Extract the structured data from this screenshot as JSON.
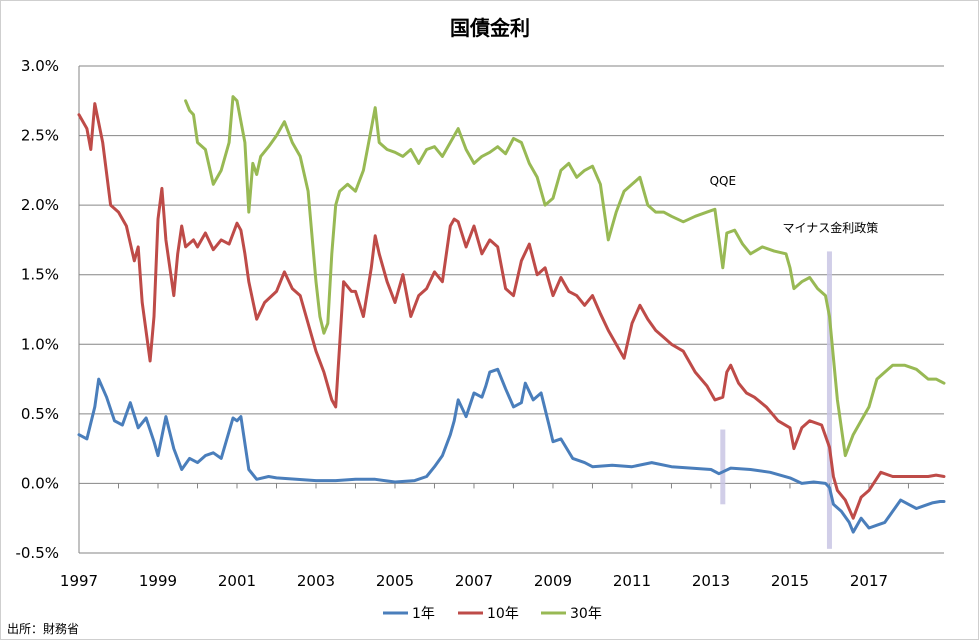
{
  "chart_data": {
    "type": "line",
    "title": "国債金利",
    "xlabel": "",
    "ylabel": "",
    "ylim": [
      -0.5,
      3.0
    ],
    "xlim": [
      1997.0,
      2018.9
    ],
    "yticks": [
      3.0,
      2.5,
      2.0,
      1.5,
      1.0,
      0.5,
      0.0,
      -0.5
    ],
    "ytick_labels": [
      "3.0%",
      "2.5%",
      "2.0%",
      "1.5%",
      "1.0%",
      "0.5%",
      "0.0%",
      "-0.5%"
    ],
    "xtick_labels": [
      "1997",
      "1999",
      "2001",
      "2003",
      "2005",
      "2007",
      "2009",
      "2011",
      "2013",
      "2015",
      "2017"
    ],
    "grid": true,
    "legend_position": "bottom",
    "colors": {
      "1年": "#4a7ebb",
      "10年": "#be4b48",
      "30年": "#98b954",
      "band": "#c9c6e4"
    },
    "series": [
      {
        "name": "1年",
        "color": "#4a7ebb",
        "x": [
          1997.0,
          1997.2,
          1997.4,
          1997.5,
          1997.7,
          1997.9,
          1998.1,
          1998.3,
          1998.5,
          1998.7,
          1998.9,
          1999.0,
          1999.2,
          1999.4,
          1999.6,
          1999.8,
          2000.0,
          2000.2,
          2000.4,
          2000.6,
          2000.9,
          2001.0,
          2001.1,
          2001.3,
          2001.5,
          2001.8,
          2002.0,
          2002.5,
          2003.0,
          2003.5,
          2004.0,
          2004.5,
          2005.0,
          2005.5,
          2005.8,
          2006.0,
          2006.2,
          2006.4,
          2006.5,
          2006.6,
          2006.8,
          2007.0,
          2007.2,
          2007.3,
          2007.4,
          2007.6,
          2007.8,
          2008.0,
          2008.2,
          2008.3,
          2008.5,
          2008.7,
          2008.9,
          2009.0,
          2009.2,
          2009.5,
          2009.8,
          2010.0,
          2010.5,
          2011.0,
          2011.5,
          2012.0,
          2012.5,
          2013.0,
          2013.2,
          2013.5,
          2014.0,
          2014.5,
          2015.0,
          2015.3,
          2015.6,
          2015.9,
          2016.0,
          2016.1,
          2016.3,
          2016.5,
          2016.6,
          2016.8,
          2017.0,
          2017.2,
          2017.4,
          2017.6,
          2017.8,
          2018.0,
          2018.2,
          2018.4,
          2018.6,
          2018.8,
          2018.9
        ],
        "values": [
          0.35,
          0.32,
          0.55,
          0.75,
          0.62,
          0.45,
          0.42,
          0.58,
          0.4,
          0.47,
          0.3,
          0.2,
          0.48,
          0.25,
          0.1,
          0.18,
          0.15,
          0.2,
          0.22,
          0.18,
          0.47,
          0.45,
          0.48,
          0.1,
          0.03,
          0.05,
          0.04,
          0.03,
          0.02,
          0.02,
          0.03,
          0.03,
          0.01,
          0.02,
          0.05,
          0.12,
          0.2,
          0.35,
          0.45,
          0.6,
          0.48,
          0.65,
          0.62,
          0.7,
          0.8,
          0.82,
          0.68,
          0.55,
          0.58,
          0.72,
          0.6,
          0.65,
          0.42,
          0.3,
          0.32,
          0.18,
          0.15,
          0.12,
          0.13,
          0.12,
          0.15,
          0.12,
          0.11,
          0.1,
          0.07,
          0.11,
          0.1,
          0.08,
          0.04,
          0.0,
          0.01,
          0.0,
          -0.03,
          -0.15,
          -0.2,
          -0.28,
          -0.35,
          -0.25,
          -0.32,
          -0.3,
          -0.28,
          -0.2,
          -0.12,
          -0.15,
          -0.18,
          -0.16,
          -0.14,
          -0.13,
          -0.13
        ]
      },
      {
        "name": "10年",
        "color": "#be4b48",
        "x": [
          1997.0,
          1997.2,
          1997.3,
          1997.4,
          1997.6,
          1997.8,
          1998.0,
          1998.2,
          1998.4,
          1998.5,
          1998.6,
          1998.8,
          1998.9,
          1999.0,
          1999.1,
          1999.2,
          1999.4,
          1999.5,
          1999.6,
          1999.7,
          1999.9,
          2000.0,
          2000.2,
          2000.4,
          2000.6,
          2000.8,
          2001.0,
          2001.1,
          2001.2,
          2001.3,
          2001.5,
          2001.7,
          2002.0,
          2002.2,
          2002.4,
          2002.6,
          2002.8,
          2003.0,
          2003.2,
          2003.4,
          2003.5,
          2003.6,
          2003.7,
          2003.9,
          2004.0,
          2004.2,
          2004.4,
          2004.5,
          2004.6,
          2004.8,
          2005.0,
          2005.2,
          2005.4,
          2005.6,
          2005.8,
          2006.0,
          2006.2,
          2006.4,
          2006.5,
          2006.6,
          2006.8,
          2007.0,
          2007.2,
          2007.4,
          2007.6,
          2007.8,
          2008.0,
          2008.2,
          2008.4,
          2008.6,
          2008.8,
          2009.0,
          2009.2,
          2009.4,
          2009.6,
          2009.8,
          2010.0,
          2010.2,
          2010.4,
          2010.6,
          2010.8,
          2011.0,
          2011.2,
          2011.4,
          2011.6,
          2011.8,
          2012.0,
          2012.3,
          2012.6,
          2012.9,
          2013.1,
          2013.3,
          2013.4,
          2013.5,
          2013.7,
          2013.9,
          2014.1,
          2014.4,
          2014.7,
          2015.0,
          2015.1,
          2015.3,
          2015.5,
          2015.8,
          2016.0,
          2016.1,
          2016.2,
          2016.4,
          2016.6,
          2016.8,
          2017.0,
          2017.3,
          2017.6,
          2017.9,
          2018.2,
          2018.5,
          2018.7,
          2018.9
        ],
        "values": [
          2.65,
          2.55,
          2.4,
          2.73,
          2.45,
          2.0,
          1.95,
          1.85,
          1.6,
          1.7,
          1.3,
          0.88,
          1.2,
          1.9,
          2.12,
          1.75,
          1.35,
          1.65,
          1.85,
          1.7,
          1.75,
          1.7,
          1.8,
          1.68,
          1.75,
          1.72,
          1.87,
          1.82,
          1.65,
          1.45,
          1.18,
          1.3,
          1.38,
          1.52,
          1.4,
          1.35,
          1.15,
          0.95,
          0.8,
          0.6,
          0.55,
          1.0,
          1.45,
          1.38,
          1.38,
          1.2,
          1.55,
          1.78,
          1.65,
          1.45,
          1.3,
          1.5,
          1.2,
          1.35,
          1.4,
          1.52,
          1.45,
          1.85,
          1.9,
          1.88,
          1.7,
          1.85,
          1.65,
          1.75,
          1.7,
          1.4,
          1.35,
          1.6,
          1.72,
          1.5,
          1.55,
          1.35,
          1.48,
          1.38,
          1.35,
          1.28,
          1.35,
          1.22,
          1.1,
          1.0,
          0.9,
          1.15,
          1.28,
          1.18,
          1.1,
          1.05,
          1.0,
          0.95,
          0.8,
          0.7,
          0.6,
          0.62,
          0.8,
          0.85,
          0.72,
          0.65,
          0.62,
          0.55,
          0.45,
          0.4,
          0.25,
          0.4,
          0.45,
          0.42,
          0.26,
          0.05,
          -0.05,
          -0.12,
          -0.25,
          -0.1,
          -0.05,
          0.08,
          0.05,
          0.05,
          0.05,
          0.05,
          0.06,
          0.05
        ]
      },
      {
        "name": "30年",
        "color": "#98b954",
        "x": [
          1999.7,
          1999.8,
          1999.9,
          2000.0,
          2000.2,
          2000.4,
          2000.6,
          2000.8,
          2000.9,
          2001.0,
          2001.2,
          2001.3,
          2001.4,
          2001.5,
          2001.6,
          2001.8,
          2002.0,
          2002.2,
          2002.4,
          2002.6,
          2002.8,
          2003.0,
          2003.1,
          2003.2,
          2003.3,
          2003.4,
          2003.5,
          2003.6,
          2003.8,
          2004.0,
          2004.2,
          2004.4,
          2004.5,
          2004.6,
          2004.8,
          2005.0,
          2005.2,
          2005.4,
          2005.6,
          2005.8,
          2006.0,
          2006.2,
          2006.4,
          2006.6,
          2006.8,
          2007.0,
          2007.2,
          2007.4,
          2007.6,
          2007.8,
          2008.0,
          2008.2,
          2008.4,
          2008.6,
          2008.8,
          2009.0,
          2009.2,
          2009.4,
          2009.6,
          2009.8,
          2010.0,
          2010.2,
          2010.4,
          2010.6,
          2010.8,
          2011.0,
          2011.2,
          2011.4,
          2011.6,
          2011.8,
          2012.0,
          2012.3,
          2012.6,
          2012.9,
          2013.1,
          2013.3,
          2013.4,
          2013.6,
          2013.8,
          2014.0,
          2014.3,
          2014.6,
          2014.9,
          2015.0,
          2015.1,
          2015.3,
          2015.5,
          2015.7,
          2015.9,
          2016.0,
          2016.2,
          2016.4,
          2016.6,
          2016.8,
          2017.0,
          2017.2,
          2017.4,
          2017.6,
          2017.9,
          2018.2,
          2018.5,
          2018.7,
          2018.9
        ],
        "values": [
          2.75,
          2.68,
          2.65,
          2.45,
          2.4,
          2.15,
          2.25,
          2.45,
          2.78,
          2.75,
          2.45,
          1.95,
          2.3,
          2.22,
          2.35,
          2.42,
          2.5,
          2.6,
          2.45,
          2.35,
          2.1,
          1.45,
          1.2,
          1.08,
          1.15,
          1.65,
          2.0,
          2.1,
          2.15,
          2.1,
          2.25,
          2.55,
          2.7,
          2.45,
          2.4,
          2.38,
          2.35,
          2.4,
          2.3,
          2.4,
          2.42,
          2.35,
          2.45,
          2.55,
          2.4,
          2.3,
          2.35,
          2.38,
          2.42,
          2.37,
          2.48,
          2.45,
          2.3,
          2.2,
          2.0,
          2.05,
          2.25,
          2.3,
          2.2,
          2.25,
          2.28,
          2.15,
          1.75,
          1.95,
          2.1,
          2.15,
          2.2,
          2.0,
          1.95,
          1.95,
          1.92,
          1.88,
          1.92,
          1.95,
          1.97,
          1.55,
          1.8,
          1.82,
          1.72,
          1.65,
          1.7,
          1.67,
          1.65,
          1.55,
          1.4,
          1.45,
          1.48,
          1.4,
          1.35,
          1.2,
          0.6,
          0.2,
          0.35,
          0.45,
          0.55,
          0.75,
          0.8,
          0.85,
          0.85,
          0.82,
          0.75,
          0.75,
          0.72
        ]
      }
    ],
    "annotations": [
      {
        "text": "QQE",
        "x": 2013.3
      },
      {
        "text": "マイナス金利政策",
        "x": 2016.0
      }
    ]
  },
  "source": "出所：財務省"
}
